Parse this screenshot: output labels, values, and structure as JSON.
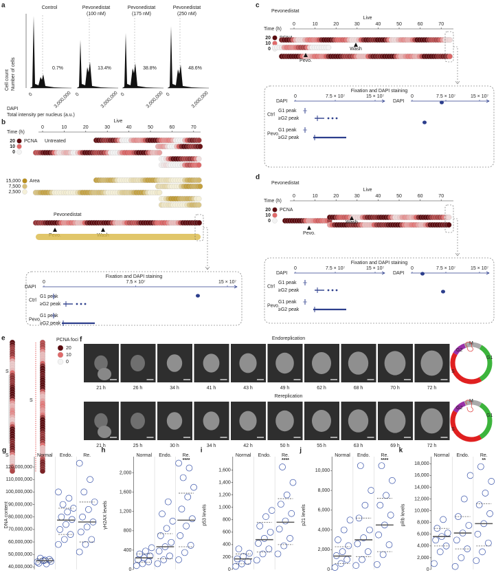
{
  "panel_a": {
    "label": "a",
    "columns": [
      {
        "title": "Control",
        "percent": "0.7%"
      },
      {
        "title": "Pevonedistat",
        "subtitle": "(100 nM)",
        "percent": "13.4%"
      },
      {
        "title": "Pevonedistat",
        "subtitle": "(175 nM)",
        "percent": "38.8%"
      },
      {
        "title": "Pevonedistat",
        "subtitle": "(250 nM)",
        "percent": "48.6%"
      }
    ],
    "x_ticks": [
      "0",
      "3,000,000"
    ],
    "y_label": [
      "Cell count",
      "Number of cells"
    ],
    "x_label": [
      "DAPI",
      "Total intensity per nucleus (a.u.)"
    ]
  },
  "common": {
    "time_label": "Time (h)",
    "live": "Live",
    "time_ticks": [
      "0",
      "10",
      "20",
      "30",
      "40",
      "50",
      "60",
      "70"
    ],
    "pcna": "PCNA",
    "pcna_levels": [
      "20",
      "10",
      "0"
    ],
    "pevo": "Pevo.",
    "wash": "Wash",
    "fixation": "Fixation and DAPI staining",
    "dapi": "DAPI",
    "dapi_ticks": [
      "0",
      "7.5 × 10⁷",
      "15 × 10⁷"
    ],
    "ctrl": "Ctrl",
    "g1_peak": "G1 peak",
    "g2_peak": "≥G2 peak"
  },
  "panel_b": {
    "label": "b",
    "untreated": "Untreated",
    "area": "Area",
    "area_levels": [
      "15,000",
      "7,500",
      "2,500"
    ],
    "pevonedistat": "Pevonedistat"
  },
  "panel_c": {
    "label": "c",
    "title": "Pevonedistat"
  },
  "panel_d": {
    "label": "d",
    "title": "Pevonedistat"
  },
  "panel_e": {
    "label": "e",
    "s": "S",
    "legend_title": "PCNA foci",
    "levels": [
      "20",
      "10",
      "0"
    ]
  },
  "panel_f": {
    "label": "f",
    "rows": [
      {
        "title": "Endoreplication",
        "times": [
          "21 h",
          "26 h",
          "34 h",
          "41 h",
          "43 h",
          "49 h",
          "62 h",
          "68 h",
          "70 h",
          "72 h"
        ]
      },
      {
        "title": "Rereplication",
        "times": [
          "21 h",
          "25 h",
          "30 h",
          "34 h",
          "42 h",
          "50 h",
          "55 h",
          "63 h",
          "69 h",
          "72 h"
        ]
      }
    ],
    "phases": [
      "G1",
      "S",
      "G2",
      "M"
    ]
  },
  "chart_data": [
    {
      "type": "strip",
      "panel": "g",
      "ylabel": "DNA content",
      "categories": [
        "Normal",
        "Endo.",
        "Re."
      ],
      "color": "#3550a8",
      "values": [
        [
          44000000,
          45000000,
          46000000,
          43000000,
          45500000,
          44500000,
          47000000,
          42500000
        ],
        [
          58000000,
          62000000,
          66000000,
          70000000,
          74000000,
          78000000,
          80000000,
          84000000,
          87000000,
          90000000,
          95000000,
          100000000
        ],
        [
          52000000,
          58000000,
          62000000,
          68000000,
          72000000,
          76000000,
          80000000,
          86000000,
          92000000,
          100000000,
          110000000,
          123000000
        ]
      ],
      "median": [
        45000000,
        77500000,
        76000000
      ],
      "q1": [
        43500000,
        66000000,
        60000000
      ],
      "q3": [
        46500000,
        87000000,
        92000000
      ],
      "ylim": [
        38000000,
        125000000
      ],
      "yticks": [
        {
          "value": 40000000,
          "label": "40,000,000"
        },
        {
          "value": 50000000,
          "label": "50,000,000"
        },
        {
          "value": 60000000,
          "label": "60,000,000"
        },
        {
          "value": 70000000,
          "label": "70,000,000"
        },
        {
          "value": 80000000,
          "label": "80,000,000"
        },
        {
          "value": 90000000,
          "label": "90,000,000"
        },
        {
          "value": 100000000,
          "label": "100,000,000"
        },
        {
          "value": 110000000,
          "label": "110,000,000"
        },
        {
          "value": 120000000,
          "label": "120,000,000"
        }
      ]
    },
    {
      "type": "strip",
      "panel": "h",
      "ylabel": "γH2AX levels",
      "significance": "****",
      "categories": [
        "Normal",
        "Endo.",
        "Re."
      ],
      "color": "#3550a8",
      "values": [
        [
          80,
          120,
          160,
          200,
          240,
          280,
          320,
          380,
          450
        ],
        [
          120,
          200,
          280,
          380,
          470,
          560,
          700,
          850,
          1000,
          1150,
          1400
        ],
        [
          200,
          350,
          500,
          700,
          900,
          1050,
          1250,
          1500,
          1700,
          1900,
          2100,
          2200
        ]
      ],
      "median": [
        240,
        470,
        1020
      ],
      "q1": [
        150,
        220,
        470
      ],
      "q3": [
        320,
        740,
        1580
      ],
      "ylim": [
        0,
        2250
      ],
      "yticks": [
        0,
        400,
        800,
        {
          "value": 1200,
          "label": "1,200"
        },
        {
          "value": 1600,
          "label": "1,600"
        },
        {
          "value": 2000,
          "label": "2,000"
        }
      ]
    },
    {
      "type": "strip",
      "panel": "i",
      "ylabel": "p53 levels",
      "significance": "****",
      "categories": [
        "Normal",
        "Endo.",
        "Re."
      ],
      "color": "#3550a8",
      "values": [
        [
          50,
          90,
          130,
          170,
          210,
          260,
          330
        ],
        [
          150,
          250,
          330,
          420,
          500,
          600,
          700,
          850,
          950
        ],
        [
          250,
          380,
          500,
          650,
          780,
          900,
          1050,
          1200,
          1400,
          1650
        ]
      ],
      "median": [
        170,
        480,
        760
      ],
      "q1": [
        90,
        280,
        400
      ],
      "q3": [
        250,
        760,
        1140
      ],
      "ylim": [
        0,
        1750
      ],
      "yticks": [
        0,
        200,
        400,
        600,
        800,
        {
          "value": 1000,
          "label": "1,000"
        },
        {
          "value": 1200,
          "label": "1,200"
        },
        {
          "value": 1400,
          "label": "1,400"
        },
        {
          "value": 1600,
          "label": "1,600"
        }
      ]
    },
    {
      "type": "strip",
      "panel": "j",
      "ylabel": "p21 levels",
      "significance": "****",
      "categories": [
        "Normal",
        "Endo.",
        "Re."
      ],
      "color": "#3550a8",
      "values": [
        [
          200,
          600,
          1000,
          1400,
          1800,
          2400,
          3000,
          4000,
          5000
        ],
        [
          400,
          1000,
          1800,
          2600,
          3200,
          4000,
          5200,
          6500,
          8000,
          10500
        ],
        [
          500,
          1500,
          2500,
          3500,
          4500,
          5500,
          6500,
          7500,
          9000,
          10500
        ]
      ],
      "median": [
        1350,
        3000,
        4500
      ],
      "q1": [
        600,
        1300,
        1800
      ],
      "q3": [
        2300,
        5200,
        7200
      ],
      "ylim": [
        0,
        11000
      ],
      "yticks": [
        0,
        {
          "value": 2000,
          "label": "2,000"
        },
        {
          "value": 4000,
          "label": "4,000"
        },
        {
          "value": 6000,
          "label": "6,000"
        },
        {
          "value": 8000,
          "label": "8,000"
        },
        {
          "value": 10000,
          "label": "10,000"
        }
      ]
    },
    {
      "type": "strip",
      "panel": "k",
      "ylabel": "pRb levels",
      "significance": "**",
      "categories": [
        "Normal",
        "Endo.",
        "Re."
      ],
      "color": "#3550a8",
      "values": [
        [
          1000,
          3000,
          4000,
          5000,
          5600,
          6200,
          7000,
          8500
        ],
        [
          500,
          2000,
          3500,
          5000,
          6200,
          7500,
          9000,
          12000,
          16000
        ],
        [
          1500,
          3000,
          4500,
          6000,
          7800,
          9500,
          11000,
          13000,
          15000,
          17500
        ]
      ],
      "median": [
        5600,
        6200,
        7800
      ],
      "q1": [
        4000,
        3500,
        4000
      ],
      "q3": [
        7000,
        9000,
        11200
      ],
      "ylim": [
        0,
        18500
      ],
      "yticks": [
        0,
        {
          "value": 2000,
          "label": "2,000"
        },
        {
          "value": 4000,
          "label": "4,000"
        },
        {
          "value": 6000,
          "label": "6,000"
        },
        {
          "value": 8000,
          "label": "8,000"
        },
        {
          "value": 10000,
          "label": "10,000"
        },
        {
          "value": 12000,
          "label": "12,000"
        },
        {
          "value": 14000,
          "label": "14,000"
        },
        {
          "value": 16000,
          "label": "16,000"
        },
        {
          "value": 18000,
          "label": "18,000"
        }
      ]
    }
  ]
}
